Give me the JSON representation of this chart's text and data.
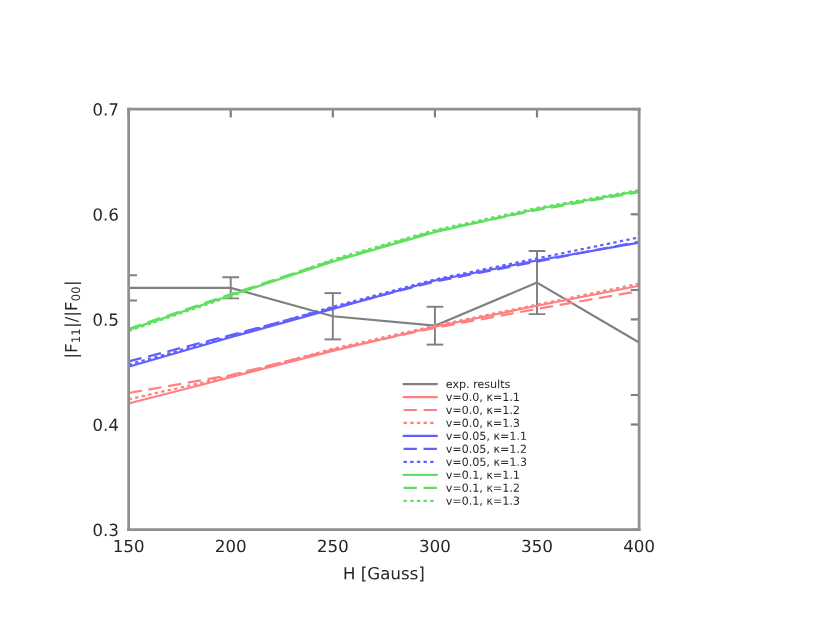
{
  "chart_data": {
    "type": "line",
    "xlabel": "H [Gauss]",
    "ylabel": "|F$_{11}$|/|F$_{00}$|",
    "x": [
      150,
      200,
      250,
      300,
      350,
      400
    ],
    "xlim": [
      150,
      400
    ],
    "xticks": [
      150,
      200,
      250,
      300,
      350,
      400
    ],
    "ylim": [
      0.3,
      0.7
    ],
    "yticks": [
      0.3,
      0.4,
      0.5,
      0.6,
      0.7
    ],
    "grid": false,
    "legend": "bottom right",
    "marker": "none",
    "series": [
      {
        "name": "exp. results",
        "color": "#808080",
        "line_style": "solid",
        "values": [
          0.53,
          0.53,
          0.503,
          0.494,
          0.535,
          0.478
        ],
        "errors": [
          0.012,
          0.01,
          0.022,
          0.018,
          0.03,
          0.05
        ]
      },
      {
        "name": "v=0.0, κ=1.1",
        "color": "#ff8080",
        "line_style": "solid",
        "values": [
          0.42,
          0.445,
          0.47,
          0.493,
          0.513,
          0.532
        ]
      },
      {
        "name": "v=0.0, κ=1.2",
        "color": "#ff8080",
        "line_style": "dashed",
        "values": [
          0.43,
          0.447,
          0.471,
          0.492,
          0.51,
          0.527
        ]
      },
      {
        "name": "v=0.0, κ=1.3",
        "color": "#ff8080",
        "line_style": "dotted",
        "values": [
          0.424,
          0.446,
          0.472,
          0.494,
          0.514,
          0.534
        ]
      },
      {
        "name": "v=0.05, κ=1.1",
        "color": "#6060ff",
        "line_style": "solid",
        "values": [
          0.455,
          0.483,
          0.51,
          0.537,
          0.556,
          0.573
        ]
      },
      {
        "name": "v=0.05, κ=1.2",
        "color": "#6060ff",
        "line_style": "dashed",
        "values": [
          0.46,
          0.485,
          0.511,
          0.536,
          0.555,
          0.574
        ]
      },
      {
        "name": "v=0.05, κ=1.3",
        "color": "#6060ff",
        "line_style": "dotted",
        "values": [
          0.457,
          0.484,
          0.512,
          0.538,
          0.558,
          0.578
        ]
      },
      {
        "name": "v=0.1, κ=1.1",
        "color": "#60e060",
        "line_style": "solid",
        "values": [
          0.49,
          0.523,
          0.555,
          0.583,
          0.605,
          0.622
        ]
      },
      {
        "name": "v=0.1, κ=1.2",
        "color": "#60e060",
        "line_style": "dashed",
        "values": [
          0.491,
          0.524,
          0.556,
          0.584,
          0.604,
          0.621
        ]
      },
      {
        "name": "v=0.1, κ=1.3",
        "color": "#60e060",
        "line_style": "dotted",
        "values": [
          0.489,
          0.522,
          0.557,
          0.585,
          0.606,
          0.623
        ]
      }
    ]
  }
}
